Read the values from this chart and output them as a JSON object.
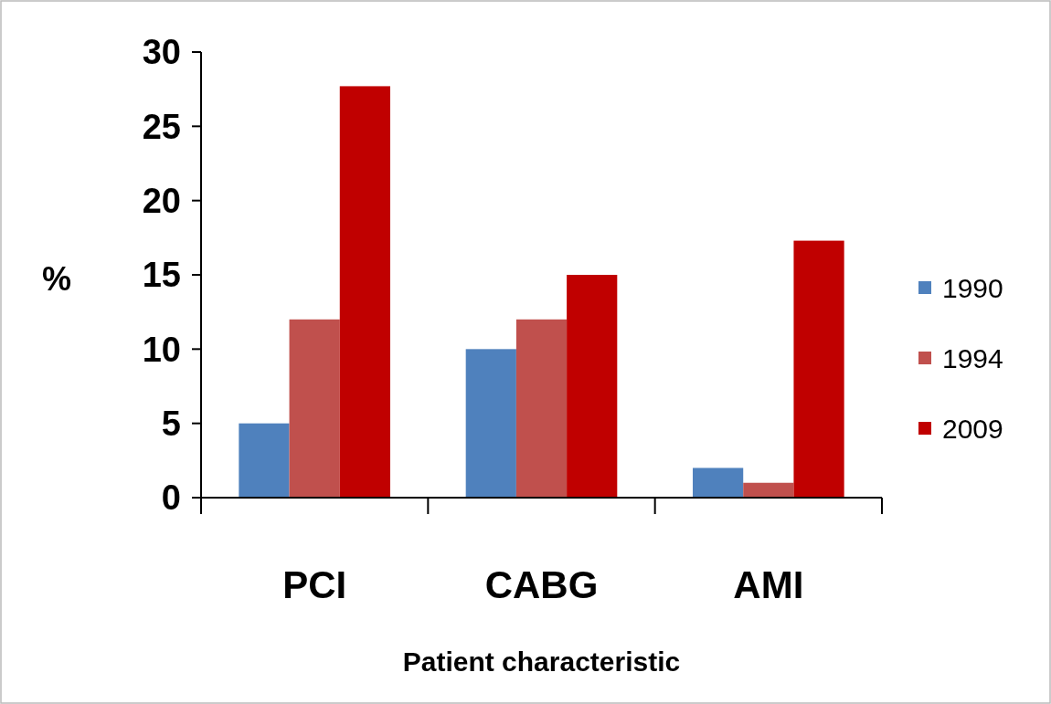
{
  "chart_data": {
    "type": "bar",
    "xlabel": "Patient characteristic",
    "ylabel": "%",
    "categories": [
      "PCI",
      "CABG",
      "AMI"
    ],
    "series": [
      {
        "name": "1990",
        "color": "#4f81bd",
        "values": [
          5,
          10,
          2
        ]
      },
      {
        "name": "1994",
        "color": "#c0504d",
        "values": [
          12,
          12,
          1
        ]
      },
      {
        "name": "2009",
        "color": "#c00000",
        "values": [
          27.7,
          15,
          17.3
        ]
      }
    ],
    "ylim": [
      0,
      30
    ],
    "yticks": [
      0,
      5,
      10,
      15,
      20,
      25,
      30
    ],
    "grid": false,
    "legend": "right"
  }
}
